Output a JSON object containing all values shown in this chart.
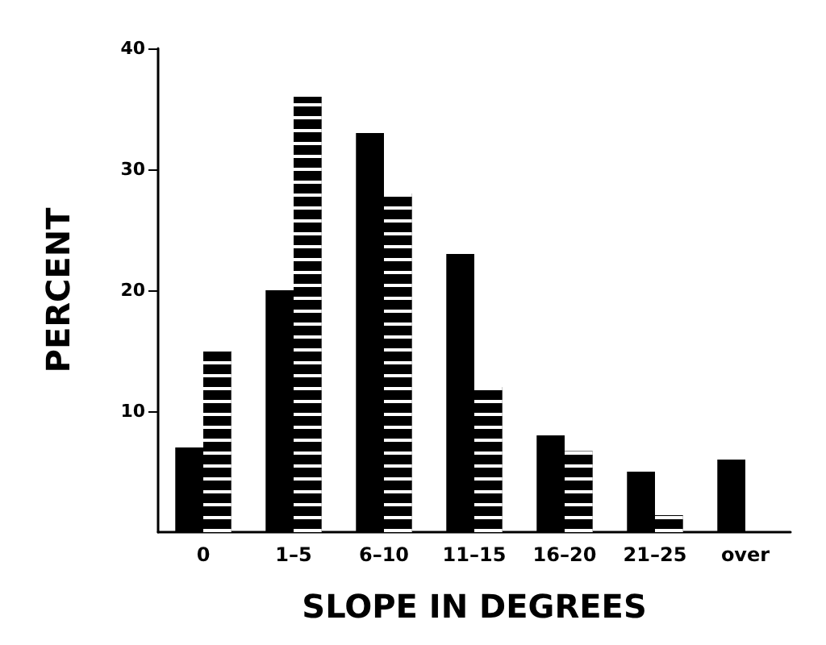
{
  "chart_data": {
    "type": "bar",
    "xlabel": "SLOPE IN DEGREES",
    "ylabel": "PERCENT",
    "categories": [
      "0",
      "1–5",
      "6–10",
      "11–15",
      "16–20",
      "21–25",
      "over"
    ],
    "series": [
      {
        "color": "#000000",
        "values": [
          7,
          20,
          33,
          23,
          8,
          5,
          6
        ]
      },
      {
        "color": "#000000",
        "values": [
          15,
          36,
          28,
          12,
          6.7,
          1.4,
          null
        ]
      }
    ],
    "ylim": [
      0,
      40
    ],
    "yticks": [
      10,
      20,
      30,
      40
    ],
    "grid": false
  }
}
